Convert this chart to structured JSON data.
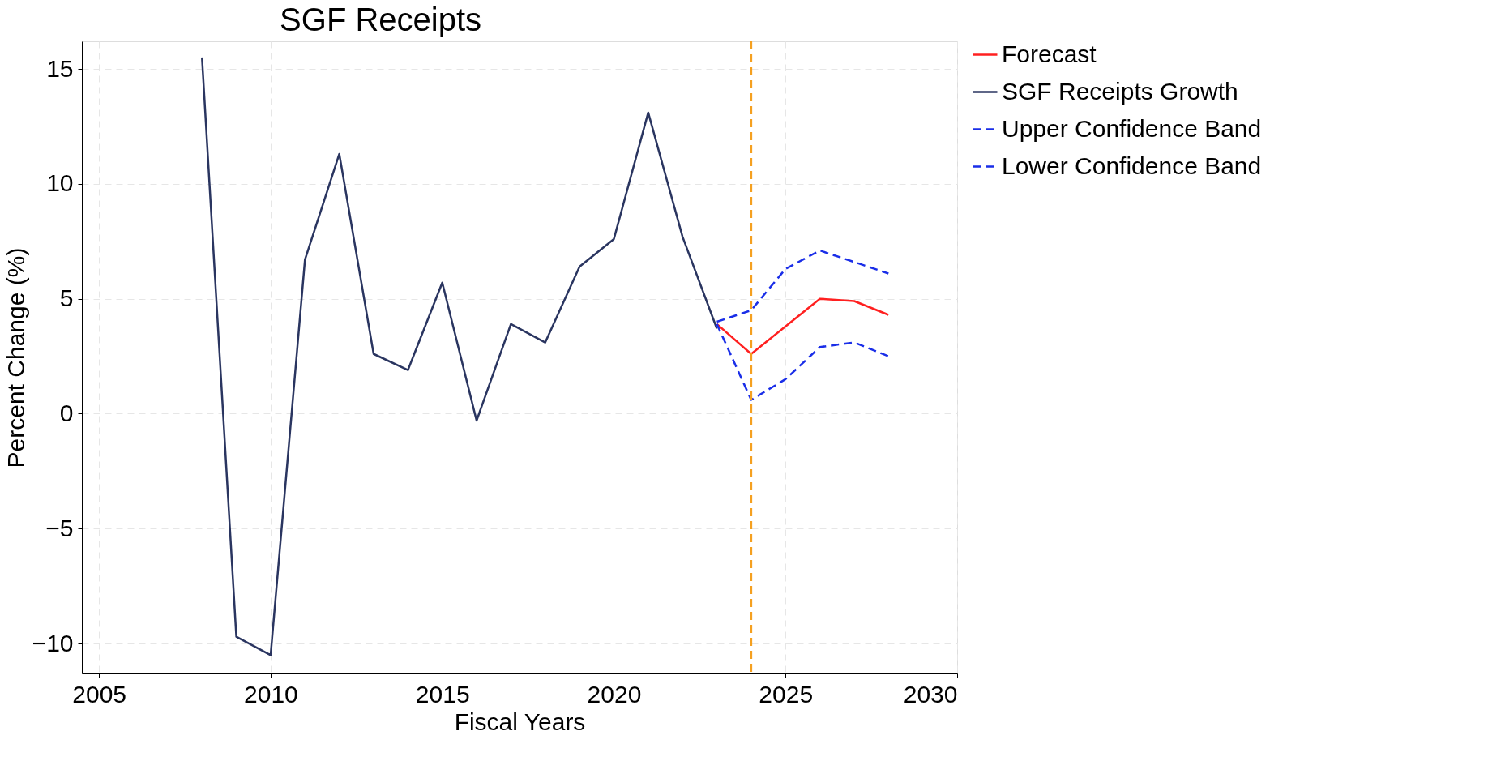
{
  "chart_data": {
    "type": "line",
    "title": "SGF Receipts",
    "xlabel": "Fiscal Years",
    "ylabel": "Percent Change (%)",
    "series": [
      {
        "name": "Forecast",
        "color": "#ff2020",
        "line_style": "solid",
        "x": [
          2023,
          2024,
          2025,
          2026,
          2027,
          2028
        ],
        "values": [
          3.9,
          2.6,
          3.8,
          5.0,
          4.9,
          4.3
        ]
      },
      {
        "name": "SGF Receipts Growth",
        "color": "#2a3560",
        "line_style": "solid",
        "x": [
          2008,
          2009,
          2010,
          2011,
          2012,
          2013,
          2014,
          2015,
          2016,
          2017,
          2018,
          2019,
          2020,
          2021,
          2022,
          2023
        ],
        "values": [
          15.5,
          -9.7,
          -10.5,
          6.7,
          11.3,
          2.6,
          1.9,
          5.7,
          -0.3,
          3.9,
          3.1,
          6.4,
          7.6,
          13.1,
          7.7,
          3.7
        ]
      },
      {
        "name": "Upper Confidence Band",
        "color": "#1a2ee8",
        "line_style": "dashed",
        "x": [
          2023,
          2024,
          2025,
          2026,
          2027,
          2028
        ],
        "values": [
          4.0,
          4.5,
          6.3,
          7.1,
          6.6,
          6.1
        ]
      },
      {
        "name": "Lower Confidence Band",
        "color": "#1a2ee8",
        "line_style": "dashed",
        "x": [
          2023,
          2024,
          2025,
          2026,
          2027,
          2028
        ],
        "values": [
          3.9,
          0.6,
          1.5,
          2.9,
          3.1,
          2.5
        ]
      }
    ],
    "xlim": [
      2004.5,
      2030
    ],
    "xticks": [
      2005,
      2010,
      2015,
      2020,
      2025,
      2030
    ],
    "ylim": [
      -11.3,
      16.2
    ],
    "yticks": [
      -10,
      -5,
      0,
      5,
      10,
      15
    ],
    "ref_lines": [
      {
        "axis": "x",
        "value": 2024,
        "color": "#f5a020",
        "line_style": "dashed"
      }
    ],
    "grid": true,
    "legend": "right",
    "marker": "none"
  }
}
